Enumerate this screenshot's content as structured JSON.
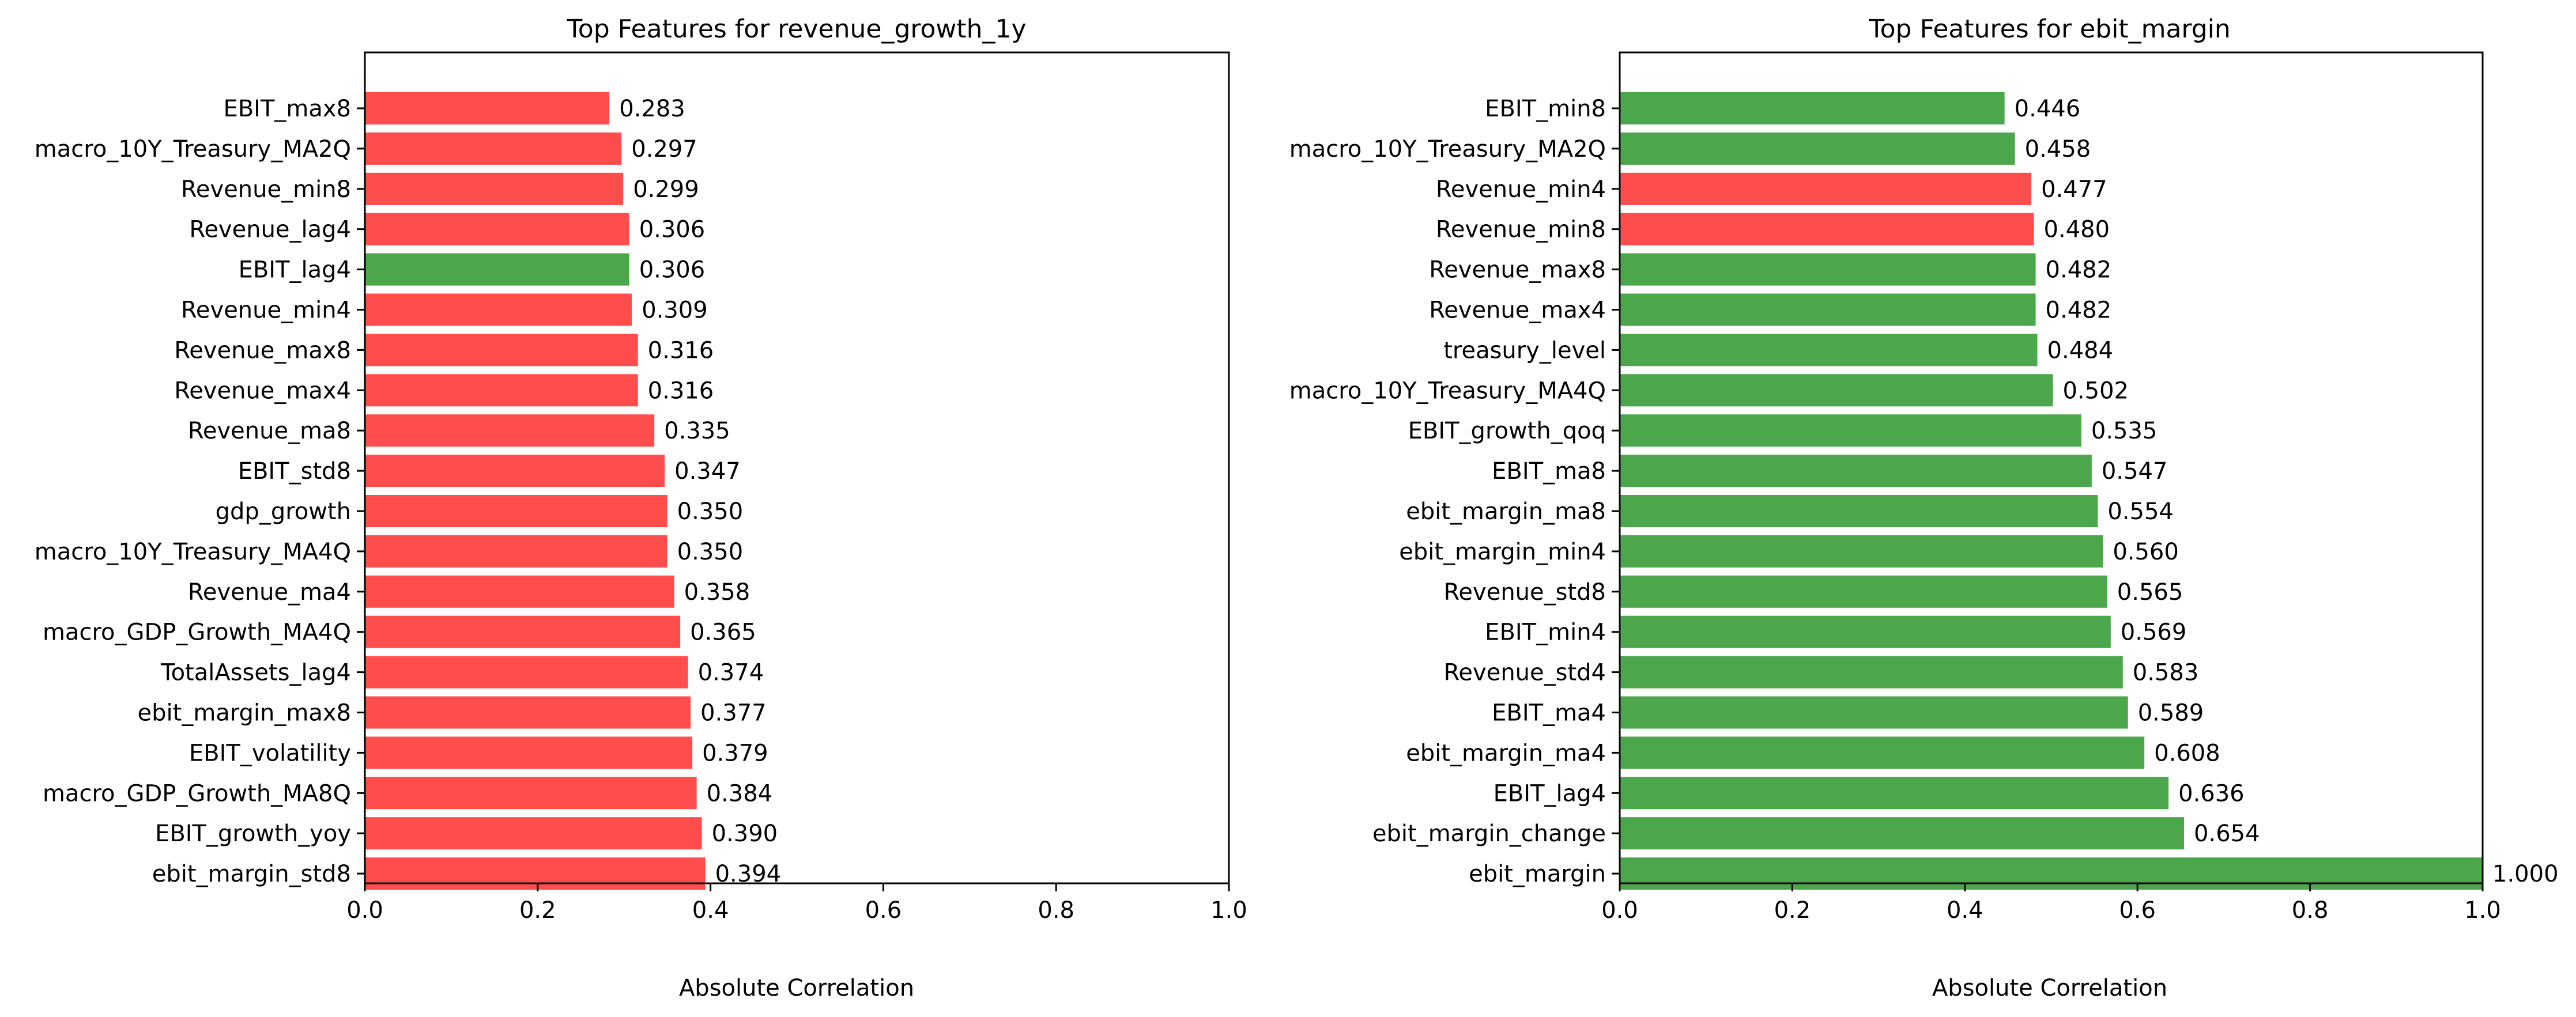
{
  "chart_data": [
    {
      "type": "bar",
      "orientation": "horizontal",
      "title": "Top Features for revenue_growth_1y",
      "xlabel": "Absolute Correlation",
      "ylabel": "",
      "xlim": [
        0.0,
        1.0
      ],
      "xticks": [
        "0.0",
        "0.2",
        "0.4",
        "0.6",
        "0.8",
        "1.0"
      ],
      "grid": false,
      "categories": [
        "EBIT_max8",
        "macro_10Y_Treasury_MA2Q",
        "Revenue_min8",
        "Revenue_lag4",
        "EBIT_lag4",
        "Revenue_min4",
        "Revenue_max8",
        "Revenue_max4",
        "Revenue_ma8",
        "EBIT_std8",
        "gdp_growth",
        "macro_10Y_Treasury_MA4Q",
        "Revenue_ma4",
        "macro_GDP_Growth_MA4Q",
        "TotalAssets_lag4",
        "ebit_margin_max8",
        "EBIT_volatility",
        "macro_GDP_Growth_MA8Q",
        "EBIT_growth_yoy",
        "ebit_margin_std8"
      ],
      "values": [
        0.283,
        0.297,
        0.299,
        0.306,
        0.306,
        0.309,
        0.316,
        0.316,
        0.335,
        0.347,
        0.35,
        0.35,
        0.358,
        0.365,
        0.374,
        0.377,
        0.379,
        0.384,
        0.39,
        0.394
      ],
      "value_labels": [
        "0.283",
        "0.297",
        "0.299",
        "0.306",
        "0.306",
        "0.309",
        "0.316",
        "0.316",
        "0.335",
        "0.347",
        "0.350",
        "0.350",
        "0.358",
        "0.365",
        "0.374",
        "0.377",
        "0.379",
        "0.384",
        "0.390",
        "0.394"
      ],
      "sign": [
        "neg",
        "neg",
        "neg",
        "neg",
        "pos",
        "neg",
        "neg",
        "neg",
        "neg",
        "neg",
        "neg",
        "neg",
        "neg",
        "neg",
        "neg",
        "neg",
        "neg",
        "neg",
        "neg",
        "neg"
      ]
    },
    {
      "type": "bar",
      "orientation": "horizontal",
      "title": "Top Features for ebit_margin",
      "xlabel": "Absolute Correlation",
      "ylabel": "",
      "xlim": [
        0.0,
        1.0
      ],
      "xticks": [
        "0.0",
        "0.2",
        "0.4",
        "0.6",
        "0.8",
        "1.0"
      ],
      "grid": false,
      "categories": [
        "EBIT_min8",
        "macro_10Y_Treasury_MA2Q",
        "Revenue_min4",
        "Revenue_min8",
        "Revenue_max8",
        "Revenue_max4",
        "treasury_level",
        "macro_10Y_Treasury_MA4Q",
        "EBIT_growth_qoq",
        "EBIT_ma8",
        "ebit_margin_ma8",
        "ebit_margin_min4",
        "Revenue_std8",
        "EBIT_min4",
        "Revenue_std4",
        "EBIT_ma4",
        "ebit_margin_ma4",
        "EBIT_lag4",
        "ebit_margin_change",
        "ebit_margin"
      ],
      "values": [
        0.446,
        0.458,
        0.477,
        0.48,
        0.482,
        0.482,
        0.484,
        0.502,
        0.535,
        0.547,
        0.554,
        0.56,
        0.565,
        0.569,
        0.583,
        0.589,
        0.608,
        0.636,
        0.654,
        1.0
      ],
      "value_labels": [
        "0.446",
        "0.458",
        "0.477",
        "0.480",
        "0.482",
        "0.482",
        "0.484",
        "0.502",
        "0.535",
        "0.547",
        "0.554",
        "0.560",
        "0.565",
        "0.569",
        "0.583",
        "0.589",
        "0.608",
        "0.636",
        "0.654",
        "1.000"
      ],
      "sign": [
        "pos",
        "pos",
        "neg",
        "neg",
        "pos",
        "pos",
        "pos",
        "pos",
        "pos",
        "pos",
        "pos",
        "pos",
        "pos",
        "pos",
        "pos",
        "pos",
        "pos",
        "pos",
        "pos",
        "pos"
      ]
    }
  ],
  "colors": {
    "pos": "#4ca64c",
    "neg": "#ff4c4c",
    "axis": "#000000"
  }
}
